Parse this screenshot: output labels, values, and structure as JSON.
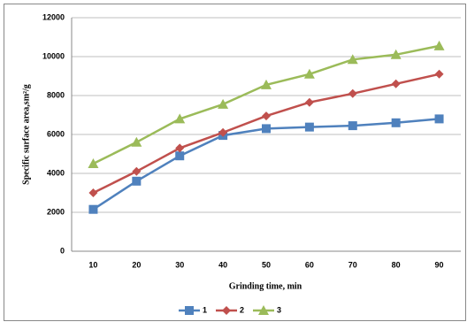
{
  "chart_data": {
    "type": "line",
    "x_label": "Grinding time, min",
    "y_label": "Specific surface area,sm²/g",
    "categories": [
      "10",
      "20",
      "30",
      "40",
      "50",
      "60",
      "70",
      "80",
      "90"
    ],
    "series": [
      {
        "name": "1",
        "color": "#4f81bd",
        "marker": "square",
        "values": [
          2150,
          3600,
          4900,
          5950,
          6300,
          6380,
          6450,
          6600,
          6800
        ]
      },
      {
        "name": "2",
        "color": "#c0504d",
        "marker": "diamond",
        "values": [
          3000,
          4100,
          5300,
          6100,
          6950,
          7650,
          8100,
          8600,
          9100
        ]
      },
      {
        "name": "3",
        "color": "#9bbb59",
        "marker": "triangle",
        "values": [
          4500,
          5600,
          6800,
          7550,
          8550,
          9100,
          9850,
          10100,
          10550
        ]
      }
    ],
    "ylim": [
      0,
      12000
    ],
    "yticks": [
      0,
      2000,
      4000,
      6000,
      8000,
      10000,
      12000
    ],
    "grid": true,
    "legend": "bottom"
  }
}
